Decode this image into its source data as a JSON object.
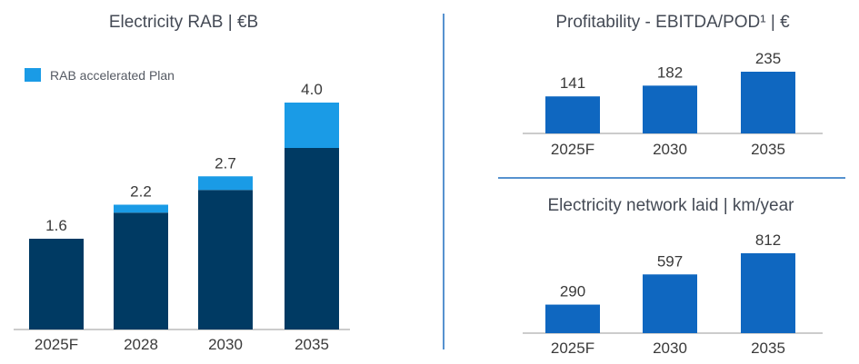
{
  "chart_data": [
    {
      "type": "bar",
      "title": "Electricity RAB | €B",
      "categories": [
        "2025F",
        "2028",
        "2030",
        "2035"
      ],
      "totals": [
        1.6,
        2.2,
        2.7,
        4.0
      ],
      "total_labels": [
        "1.6",
        "2.2",
        "2.7",
        "4.0"
      ],
      "series": [
        {
          "values": [
            1.6,
            2.06,
            2.46,
            3.2
          ]
        },
        {
          "name": "RAB accelerated Plan",
          "values": [
            0.0,
            0.14,
            0.24,
            0.8
          ]
        }
      ],
      "stacked": true,
      "legend": "top-left",
      "colors": {
        "base": "#003a63",
        "accelerated": "#1a9be6"
      }
    },
    {
      "type": "bar",
      "title": "Profitability - EBITDA/POD¹ | €",
      "categories": [
        "2025F",
        "2030",
        "2035"
      ],
      "values": [
        141,
        182,
        235
      ],
      "value_labels": [
        "141",
        "182",
        "235"
      ],
      "colors": {
        "bar": "#0f67c0"
      }
    },
    {
      "type": "bar",
      "title": "Electricity network laid | km/year",
      "categories": [
        "2025F",
        "2030",
        "2035"
      ],
      "values": [
        290,
        597,
        812
      ],
      "value_labels": [
        "290",
        "597",
        "812"
      ],
      "colors": {
        "bar": "#0f67c0"
      }
    }
  ],
  "colors": {
    "divider": "#1f6fbf",
    "axis": "#9a9a9a"
  }
}
